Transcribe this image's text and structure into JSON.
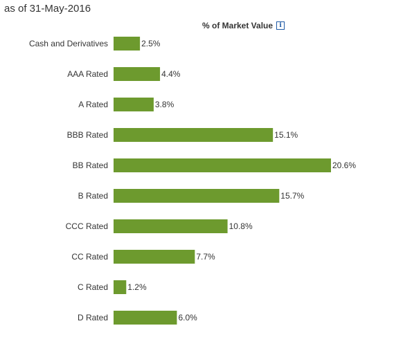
{
  "as_of": "as of 31-May-2016",
  "header": {
    "title": "% of Market Value",
    "info_icon": "info-icon"
  },
  "colors": {
    "bar": "#6d9a2e"
  },
  "chart_data": {
    "type": "bar",
    "orientation": "horizontal",
    "title": "% of Market Value",
    "categories": [
      "Cash and Derivatives",
      "AAA Rated",
      "A Rated",
      "BBB Rated",
      "BB Rated",
      "B Rated",
      "CCC Rated",
      "CC Rated",
      "C Rated",
      "D Rated"
    ],
    "values": [
      2.5,
      4.4,
      3.8,
      15.1,
      20.6,
      15.7,
      10.8,
      7.7,
      1.2,
      6.0
    ],
    "value_labels": [
      "2.5%",
      "4.4%",
      "3.8%",
      "15.1%",
      "20.6%",
      "15.7%",
      "10.8%",
      "7.7%",
      "1.2%",
      "6.0%"
    ],
    "xlim": [
      0,
      20.6
    ],
    "grid": false
  }
}
